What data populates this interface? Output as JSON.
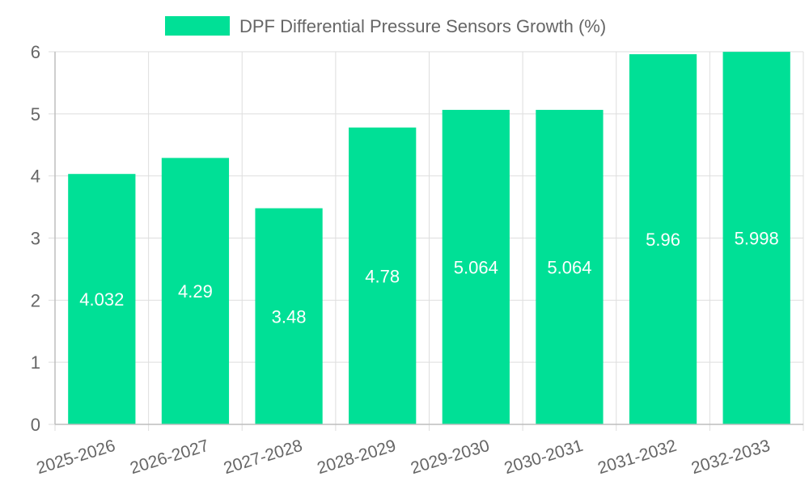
{
  "chart_data": {
    "type": "bar",
    "title": "",
    "xlabel": "",
    "ylabel": "",
    "categories": [
      "2025-2026",
      "2026-2027",
      "2027-2028",
      "2028-2029",
      "2029-2030",
      "2030-2031",
      "2031-2032",
      "2032-2033"
    ],
    "series": [
      {
        "name": "DPF Differential Pressure Sensors Growth (%)",
        "values": [
          4.032,
          4.29,
          3.48,
          4.78,
          5.064,
          5.064,
          5.96,
          5.998
        ],
        "labels": [
          "4.032",
          "4.29",
          "3.48",
          "4.78",
          "5.064",
          "5.064",
          "5.96",
          "5.998"
        ],
        "color": "#00e096"
      }
    ],
    "ylim": [
      0,
      6
    ],
    "yticks": [
      0,
      1,
      2,
      3,
      4,
      5,
      6
    ],
    "grid": true,
    "legend_position": "top-center"
  }
}
